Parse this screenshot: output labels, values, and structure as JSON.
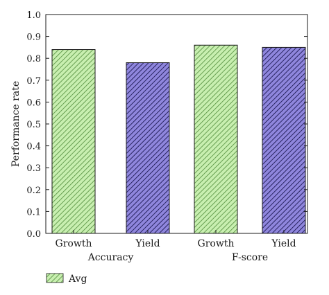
{
  "chart_data": {
    "type": "bar",
    "title": "",
    "xlabel": "",
    "ylabel": "Performance rate",
    "ylim": [
      0,
      1.0
    ],
    "yticks": [
      "0.0",
      "0.1",
      "0.2",
      "0.3",
      "0.4",
      "0.5",
      "0.6",
      "0.7",
      "0.8",
      "0.9",
      "1.0"
    ],
    "categories": [
      "Growth",
      "Yield",
      "Growth",
      "Yield"
    ],
    "groups": [
      {
        "label": "Accuracy",
        "categories": [
          "Growth",
          "Yield"
        ]
      },
      {
        "label": "F-score",
        "categories": [
          "Growth",
          "Yield"
        ]
      }
    ],
    "values": [
      0.84,
      0.78,
      0.86,
      0.85
    ],
    "bar_colors": [
      "#b9e7a0",
      "#7a6fc9",
      "#b9e7a0",
      "#7a6fc9"
    ],
    "grid": false,
    "legend": {
      "placement": "bottom-left",
      "entries": [
        {
          "label": "Avg",
          "color": "#b9e7a0"
        }
      ]
    }
  }
}
